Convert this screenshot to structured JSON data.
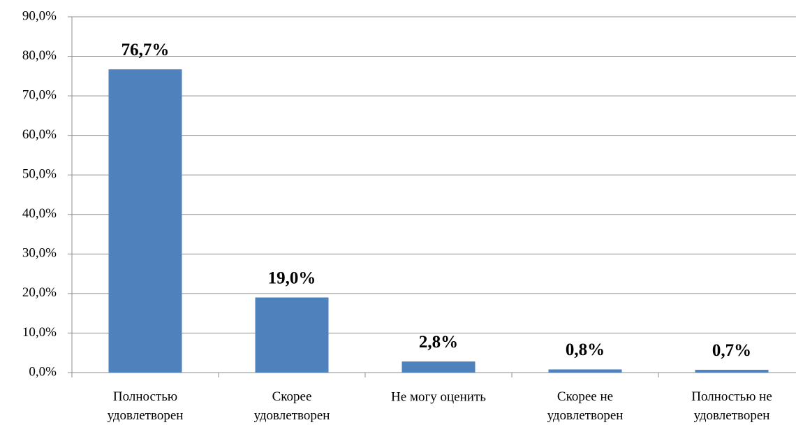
{
  "chart_data": {
    "type": "bar",
    "categories": [
      "Полностью\nудовлетворен",
      "Скорее\nудовлетворен",
      "Не могу оценить",
      "Скорее не\nудовлетворен",
      "Полностью не\nудовлетворен"
    ],
    "values": [
      76.7,
      19.0,
      2.8,
      0.8,
      0.7
    ],
    "value_labels": [
      "76,7%",
      "19,0%",
      "2,8%",
      "0,8%",
      "0,7%"
    ],
    "color": "#4f81bd",
    "ylim": [
      0,
      90
    ],
    "yticks": [
      {
        "value": 0,
        "label": "0,0%"
      },
      {
        "value": 10,
        "label": "10,0%"
      },
      {
        "value": 20,
        "label": "20,0%"
      },
      {
        "value": 30,
        "label": "30,0%"
      },
      {
        "value": 40,
        "label": "40,0%"
      },
      {
        "value": 50,
        "label": "50,0%"
      },
      {
        "value": 60,
        "label": "60,0%"
      },
      {
        "value": 70,
        "label": "70,0%"
      },
      {
        "value": 80,
        "label": "80,0%"
      },
      {
        "value": 90,
        "label": "90,0%"
      }
    ],
    "grid": true
  }
}
